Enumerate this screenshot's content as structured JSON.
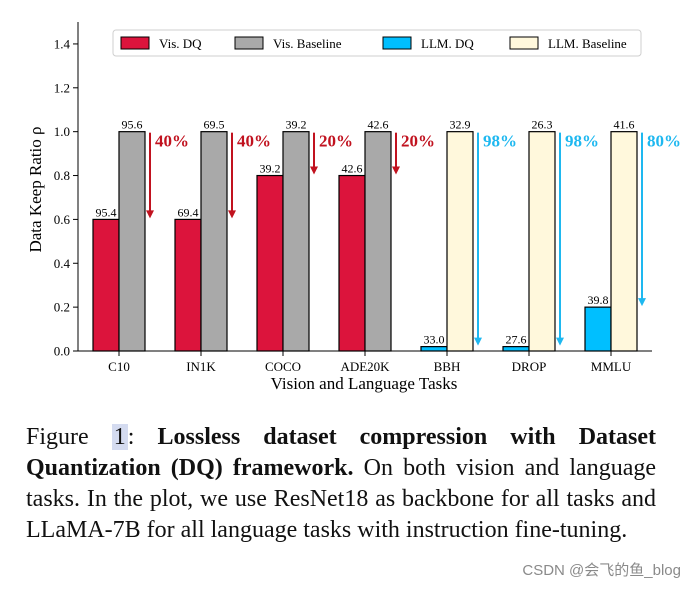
{
  "chart_data": {
    "type": "bar",
    "title": "",
    "xlabel": "Vision and Language Tasks",
    "ylabel": "Data Keep Ratio ρ",
    "ylim": [
      0,
      1.5
    ],
    "yticks": [
      "0.0",
      "0.2",
      "0.4",
      "0.6",
      "0.8",
      "1.0",
      "1.2",
      "1.4"
    ],
    "ytick_values": [
      0,
      0.2,
      0.4,
      0.6,
      0.8,
      1.0,
      1.2,
      1.4
    ],
    "categories": [
      "C10",
      "IN1K",
      "COCO",
      "ADE20K",
      "BBH",
      "DROP",
      "MMLU"
    ],
    "legend_position": "top",
    "series": [
      {
        "name": "Vis. DQ",
        "color": "#dc143c",
        "values": [
          0.6,
          0.6,
          0.8,
          0.8,
          null,
          null,
          null
        ],
        "labels": [
          "95.4",
          "69.4",
          "39.2",
          "42.6",
          null,
          null,
          null
        ]
      },
      {
        "name": "Vis. Baseline",
        "color": "#a9a9a9",
        "values": [
          1.0,
          1.0,
          1.0,
          1.0,
          null,
          null,
          null
        ],
        "labels": [
          "95.6",
          "69.5",
          "39.2",
          "42.6",
          null,
          null,
          null
        ]
      },
      {
        "name": "LLM. DQ",
        "color": "#00bfff",
        "values": [
          null,
          null,
          null,
          null,
          0.02,
          0.02,
          0.2
        ],
        "labels": [
          null,
          null,
          null,
          null,
          "33.0",
          "27.6",
          "39.8"
        ]
      },
      {
        "name": "LLM. Baseline",
        "color": "#fff8dc",
        "values": [
          null,
          null,
          null,
          null,
          1.0,
          1.0,
          1.0
        ],
        "labels": [
          null,
          null,
          null,
          null,
          "32.9",
          "26.3",
          "41.6"
        ]
      }
    ],
    "annotations": [
      {
        "category": "C10",
        "text": "40%",
        "color": "#c1121f",
        "from": 1.0,
        "to": 0.6
      },
      {
        "category": "IN1K",
        "text": "40%",
        "color": "#c1121f",
        "from": 1.0,
        "to": 0.6
      },
      {
        "category": "COCO",
        "text": "20%",
        "color": "#c1121f",
        "from": 1.0,
        "to": 0.8
      },
      {
        "category": "ADE20K",
        "text": "20%",
        "color": "#c1121f",
        "from": 1.0,
        "to": 0.8
      },
      {
        "category": "BBH",
        "text": "98%",
        "color": "#1eb8f0",
        "from": 1.0,
        "to": 0.02
      },
      {
        "category": "DROP",
        "text": "98%",
        "color": "#1eb8f0",
        "from": 1.0,
        "to": 0.02
      },
      {
        "category": "MMLU",
        "text": "80%",
        "color": "#1eb8f0",
        "from": 1.0,
        "to": 0.2
      }
    ]
  },
  "caption": {
    "figure_word": "Figure",
    "figure_number": "1",
    "colon": ":",
    "title": "Lossless dataset compression with Dataset Quantization (DQ) framework.",
    "body": "On both vision and language tasks. In the plot, we use ResNet18 as backbone for all tasks and LLaMA-7B for all language tasks with instruction fine-tuning."
  },
  "watermark": "CSDN @会飞的鱼_blog"
}
